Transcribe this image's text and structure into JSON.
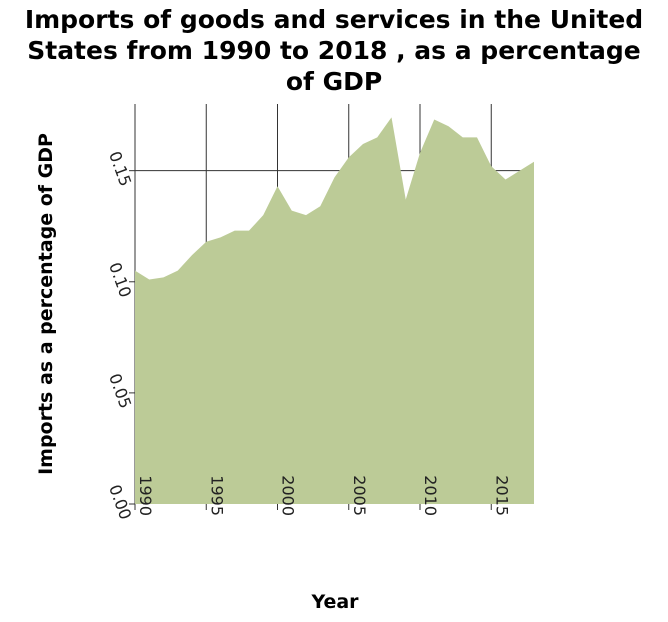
{
  "chart_data": {
    "type": "area",
    "title_lines": [
      "Imports of goods and services in the United",
      "States from 1990 to 2018 , as a percentage",
      "of GDP"
    ],
    "xlabel": "Year",
    "ylabel": "Imports as a percentage of GDP",
    "x_ticks": [
      1990,
      1995,
      2000,
      2005,
      2010,
      2015
    ],
    "y_ticks": [
      "0.00",
      "0.05",
      "0.10",
      "0.15"
    ],
    "y_tick_values": [
      0,
      0.05,
      0.1,
      0.15
    ],
    "xlim": [
      1990,
      2018
    ],
    "ylim": [
      0,
      0.18
    ],
    "grid": true,
    "fill_color": "#bccb97",
    "series": [
      {
        "x": [
          1990,
          1991,
          1992,
          1993,
          1994,
          1995,
          1996,
          1997,
          1998,
          1999,
          2000,
          2001,
          2002,
          2003,
          2004,
          2005,
          2006,
          2007,
          2008,
          2009,
          2010,
          2011,
          2012,
          2013,
          2014,
          2015,
          2016,
          2017,
          2018
        ],
        "values": [
          0.105,
          0.101,
          0.102,
          0.105,
          0.112,
          0.118,
          0.12,
          0.123,
          0.123,
          0.13,
          0.143,
          0.132,
          0.13,
          0.134,
          0.147,
          0.156,
          0.162,
          0.165,
          0.174,
          0.137,
          0.158,
          0.173,
          0.17,
          0.165,
          0.165,
          0.152,
          0.146,
          0.15,
          0.154
        ]
      }
    ]
  }
}
